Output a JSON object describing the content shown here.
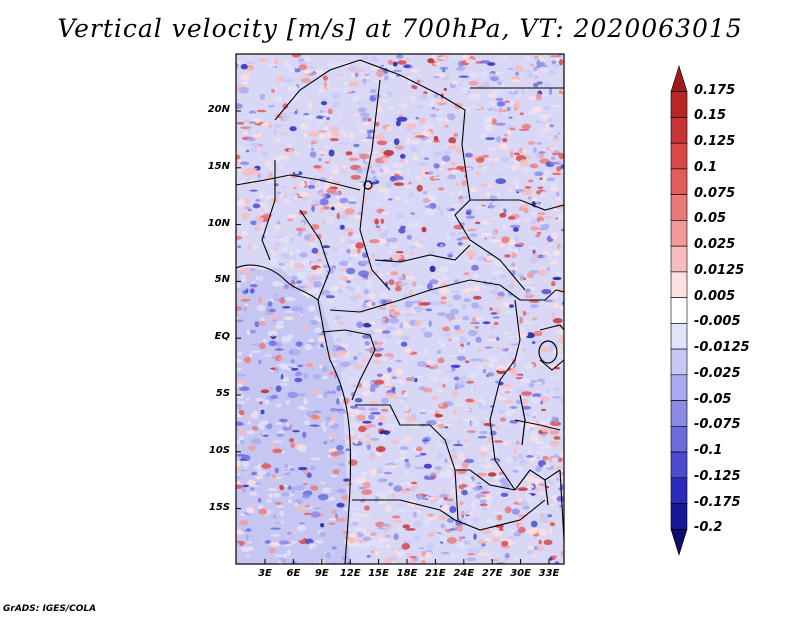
{
  "title": "Vertical velocity [m/s] at 700hPa, VT: 2020063015",
  "footer": "GrADS: IGES/COLA",
  "map": {
    "lat_labels": [
      "20N",
      "15N",
      "10N",
      "5N",
      "EQ",
      "5S",
      "10S",
      "15S"
    ],
    "lon_labels": [
      "3E",
      "6E",
      "9E",
      "12E",
      "15E",
      "18E",
      "21E",
      "24E",
      "27E",
      "30E",
      "33E"
    ]
  },
  "colorbar": {
    "labels": [
      "0.175",
      "0.15",
      "0.125",
      "0.1",
      "0.075",
      "0.05",
      "0.025",
      "0.0125",
      "0.005",
      "-0.005",
      "-0.0125",
      "-0.025",
      "-0.05",
      "-0.075",
      "-0.1",
      "-0.125",
      "-0.175",
      "-0.2"
    ],
    "colors": [
      "#a11a1a",
      "#b82626",
      "#c93535",
      "#d94747",
      "#e25c5c",
      "#ea7a7a",
      "#f29a9a",
      "#f8bcbc",
      "#fde0e0",
      "#ffffff",
      "#e2e2fb",
      "#c8c8f6",
      "#aaaaf0",
      "#8c8ce8",
      "#6c6cde",
      "#4c4cd2",
      "#2c2cbc",
      "#181896",
      "#0d0d6e"
    ]
  }
}
